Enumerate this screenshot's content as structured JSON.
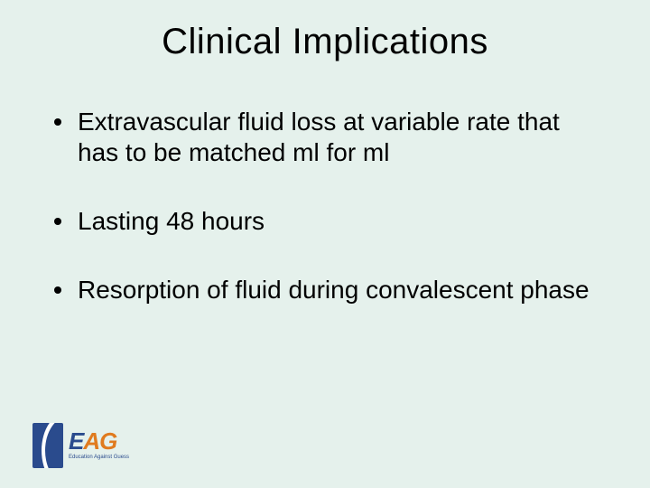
{
  "slide": {
    "background_color": "#e5f1ec",
    "text_color": "#000000",
    "title": {
      "text": "Clinical Implications",
      "fontsize": 40,
      "weight": 400
    },
    "bullets": {
      "fontsize": 28,
      "marker_color": "#000000",
      "items": [
        {
          "text": "Extravascular fluid loss at variable rate that has to be matched ml for ml"
        },
        {
          "text": "Lasting 48 hours"
        },
        {
          "text": "Resorption of fluid during convalescent phase"
        }
      ]
    },
    "logo": {
      "mark_color": "#2a4b8d",
      "letters": {
        "e": "E",
        "a": "A",
        "g": "G"
      },
      "colors": {
        "e": "#2a4b8d",
        "a": "#e07b1f",
        "g": "#e07b1f"
      },
      "tagline": "Education Against Guess"
    }
  }
}
